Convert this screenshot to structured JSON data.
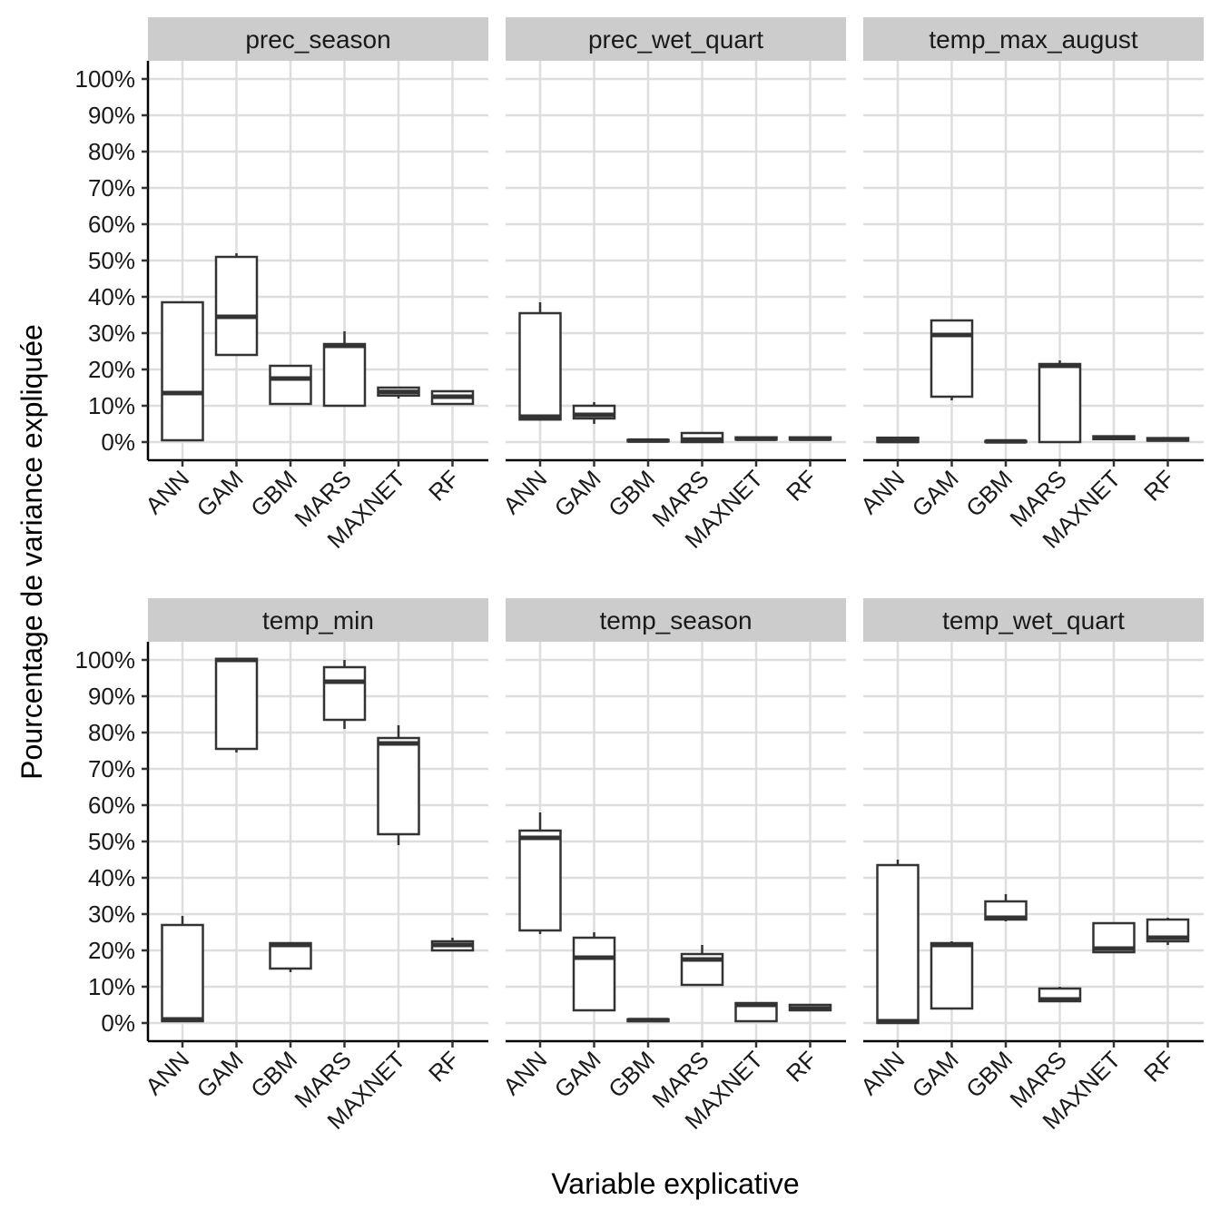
{
  "chart_data": {
    "type": "boxplot",
    "xlabel": "Variable explicative",
    "ylabel": "Pourcentage de variance expliquée",
    "ylim": [
      0,
      100
    ],
    "yticks": [
      "0%",
      "10%",
      "20%",
      "30%",
      "40%",
      "50%",
      "60%",
      "70%",
      "80%",
      "90%",
      "100%"
    ],
    "categories": [
      "ANN",
      "GAM",
      "GBM",
      "MARS",
      "MAXNET",
      "RF"
    ],
    "grid": true,
    "facets": [
      {
        "title": "prec_season",
        "boxes": [
          {
            "min": 0.5,
            "q1": 0.5,
            "median": 13.5,
            "q3": 38.5,
            "max": 38.5
          },
          {
            "min": 24,
            "q1": 24,
            "median": 34.5,
            "q3": 51,
            "max": 52
          },
          {
            "min": 10.5,
            "q1": 10.5,
            "median": 17.5,
            "q3": 21,
            "max": 21
          },
          {
            "min": 10,
            "q1": 10,
            "median": 26.5,
            "q3": 27,
            "max": 30.5
          },
          {
            "min": 12,
            "q1": 12.8,
            "median": 13.8,
            "q3": 15,
            "max": 15
          },
          {
            "min": 10.5,
            "q1": 10.5,
            "median": 12.5,
            "q3": 14,
            "max": 14
          }
        ]
      },
      {
        "title": "prec_wet_quart",
        "boxes": [
          {
            "min": 6,
            "q1": 6.2,
            "median": 7,
            "q3": 35.5,
            "max": 38.5
          },
          {
            "min": 5,
            "q1": 6.5,
            "median": 7.5,
            "q3": 10,
            "max": 11
          },
          {
            "min": 0.2,
            "q1": 0.2,
            "median": 0.4,
            "q3": 0.6,
            "max": 0.6
          },
          {
            "min": 0,
            "q1": 0,
            "median": 0.7,
            "q3": 2.5,
            "max": 2.5
          },
          {
            "min": 0.7,
            "q1": 0.7,
            "median": 0.9,
            "q3": 1.3,
            "max": 1.3
          },
          {
            "min": 0.7,
            "q1": 0.7,
            "median": 0.9,
            "q3": 1.3,
            "max": 1.3
          }
        ]
      },
      {
        "title": "temp_max_august",
        "boxes": [
          {
            "min": 0,
            "q1": 0,
            "median": 0.3,
            "q3": 1.2,
            "max": 1.5
          },
          {
            "min": 11.5,
            "q1": 12.5,
            "median": 29.5,
            "q3": 33.5,
            "max": 33.5
          },
          {
            "min": 0,
            "q1": 0,
            "median": 0.2,
            "q3": 0.3,
            "max": 0.3
          },
          {
            "min": 0,
            "q1": 0,
            "median": 21,
            "q3": 21.5,
            "max": 22.5
          },
          {
            "min": 0.8,
            "q1": 0.8,
            "median": 1.2,
            "q3": 1.6,
            "max": 1.6
          },
          {
            "min": 0.4,
            "q1": 0.4,
            "median": 0.7,
            "q3": 1.1,
            "max": 1.1
          }
        ]
      },
      {
        "title": "temp_min",
        "boxes": [
          {
            "min": 0.5,
            "q1": 0.5,
            "median": 1,
            "q3": 27,
            "max": 29.5
          },
          {
            "min": 74.5,
            "q1": 75.5,
            "median": 100,
            "q3": 100.3,
            "max": 100.3
          },
          {
            "min": 14,
            "q1": 15,
            "median": 21.5,
            "q3": 22,
            "max": 22
          },
          {
            "min": 81,
            "q1": 83.5,
            "median": 94,
            "q3": 98,
            "max": 100
          },
          {
            "min": 49,
            "q1": 52,
            "median": 77,
            "q3": 78.5,
            "max": 82
          },
          {
            "min": 20,
            "q1": 20,
            "median": 21.5,
            "q3": 22.5,
            "max": 23.5
          }
        ]
      },
      {
        "title": "temp_season",
        "boxes": [
          {
            "min": 24.5,
            "q1": 25.5,
            "median": 51,
            "q3": 53,
            "max": 58
          },
          {
            "min": 3.5,
            "q1": 3.5,
            "median": 18,
            "q3": 23.5,
            "max": 25
          },
          {
            "min": 0.5,
            "q1": 0.5,
            "median": 0.8,
            "q3": 1,
            "max": 1
          },
          {
            "min": 10.5,
            "q1": 10.5,
            "median": 17.5,
            "q3": 19,
            "max": 21.5
          },
          {
            "min": 0.5,
            "q1": 0.5,
            "median": 5,
            "q3": 5.5,
            "max": 5.5
          },
          {
            "min": 3.5,
            "q1": 3.5,
            "median": 4,
            "q3": 5,
            "max": 5
          }
        ]
      },
      {
        "title": "temp_wet_quart",
        "boxes": [
          {
            "min": 0,
            "q1": 0,
            "median": 0.5,
            "q3": 43.5,
            "max": 45
          },
          {
            "min": 4,
            "q1": 4,
            "median": 21.5,
            "q3": 22,
            "max": 22.5
          },
          {
            "min": 28,
            "q1": 28.5,
            "median": 29,
            "q3": 33.5,
            "max": 35.5
          },
          {
            "min": 6,
            "q1": 6,
            "median": 6.5,
            "q3": 9.5,
            "max": 10
          },
          {
            "min": 19.5,
            "q1": 19.5,
            "median": 20.5,
            "q3": 27.5,
            "max": 27.5
          },
          {
            "min": 21.5,
            "q1": 22.5,
            "median": 23.5,
            "q3": 28.5,
            "max": 29
          }
        ]
      }
    ]
  }
}
